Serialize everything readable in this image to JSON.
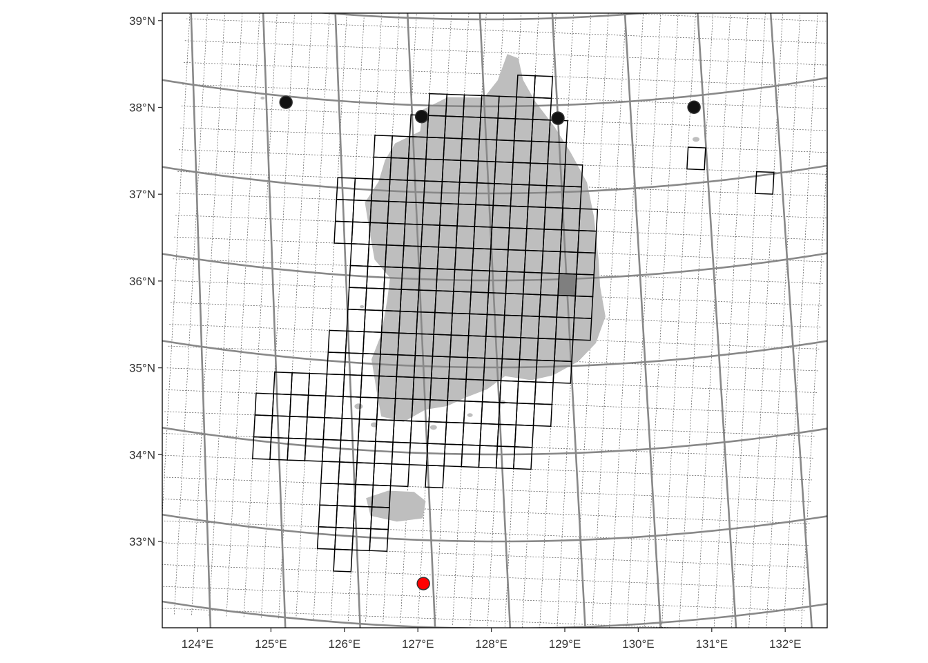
{
  "map": {
    "lon_ticks": [
      {
        "lon": 124,
        "label": "124°E"
      },
      {
        "lon": 125,
        "label": "125°E"
      },
      {
        "lon": 126,
        "label": "126°E"
      },
      {
        "lon": 127,
        "label": "127°E"
      },
      {
        "lon": 128,
        "label": "128°E"
      },
      {
        "lon": 129,
        "label": "129°E"
      },
      {
        "lon": 130,
        "label": "130°E"
      },
      {
        "lon": 131,
        "label": "131°E"
      },
      {
        "lon": 132,
        "label": "132°E"
      }
    ],
    "lat_ticks": [
      {
        "lat": 33,
        "label": "33°N"
      },
      {
        "lat": 34,
        "label": "34°N"
      },
      {
        "lat": 35,
        "label": "35°N"
      },
      {
        "lat": 36,
        "label": "36°N"
      },
      {
        "lat": 37,
        "label": "37°N"
      },
      {
        "lat": 38,
        "label": "38°N"
      },
      {
        "lat": 39,
        "label": "39°N"
      }
    ],
    "colors": {
      "land": "#bebebe",
      "highlight_cell": "#7f7f7f",
      "station": "#111111",
      "target_station": "#ff0000",
      "graticule": "#888888"
    },
    "grid_cells": {
      "rows": [
        {
          "row": 0,
          "cols": [
            [
              19,
              20
            ]
          ]
        },
        {
          "row": 1,
          "cols": [
            [
              14,
              20
            ]
          ]
        },
        {
          "row": 2,
          "cols": [
            [
              13,
              21
            ]
          ]
        },
        {
          "row": 3,
          "cols": [
            [
              11,
              21
            ]
          ]
        },
        {
          "row": 4,
          "cols": [
            [
              11,
              22
            ]
          ]
        },
        {
          "row": 5,
          "cols": [
            [
              9,
              22
            ]
          ]
        },
        {
          "row": 6,
          "cols": [
            [
              9,
              23
            ]
          ]
        },
        {
          "row": 7,
          "cols": [
            [
              9,
              23
            ]
          ]
        },
        {
          "row": 8,
          "cols": [
            [
              10,
              23
            ]
          ]
        },
        {
          "row": 9,
          "cols": [
            [
              10,
              23
            ]
          ]
        },
        {
          "row": 10,
          "cols": [
            [
              10,
              23
            ]
          ]
        },
        {
          "row": 11,
          "cols": [
            [
              10,
              23
            ]
          ]
        },
        {
          "row": 12,
          "cols": [
            [
              9,
              22
            ]
          ]
        },
        {
          "row": 13,
          "cols": [
            [
              9,
              22
            ]
          ]
        },
        {
          "row": 14,
          "cols": [
            [
              6,
              21
            ]
          ]
        },
        {
          "row": 15,
          "cols": [
            [
              5,
              21
            ]
          ]
        },
        {
          "row": 16,
          "cols": [
            [
              5,
              20
            ]
          ]
        },
        {
          "row": 17,
          "cols": [
            [
              5,
              20
            ]
          ]
        },
        {
          "row": 18,
          "cols": [
            [
              9,
              13
            ],
            [
              15,
              15
            ]
          ]
        },
        {
          "row": 19,
          "cols": [
            [
              9,
              12
            ]
          ]
        },
        {
          "row": 20,
          "cols": [
            [
              9,
              12
            ]
          ]
        },
        {
          "row": 21,
          "cols": [
            [
              9,
              12
            ]
          ]
        },
        {
          "row": 22,
          "cols": [
            [
              10,
              10
            ]
          ]
        }
      ],
      "isolated": [
        {
          "row": 3,
          "col": 29
        },
        {
          "row": 4,
          "col": 33
        }
      ],
      "highlight": {
        "row": 9,
        "col": 22
      }
    },
    "stations": [
      {
        "lon": 125.27,
        "lat": 37.93
      },
      {
        "lon": 127.13,
        "lat": 37.87
      },
      {
        "lon": 129.0,
        "lat": 37.85
      },
      {
        "lon": 130.87,
        "lat": 37.87
      }
    ],
    "target_station": {
      "lon": 126.87,
      "lat": 32.5
    }
  }
}
